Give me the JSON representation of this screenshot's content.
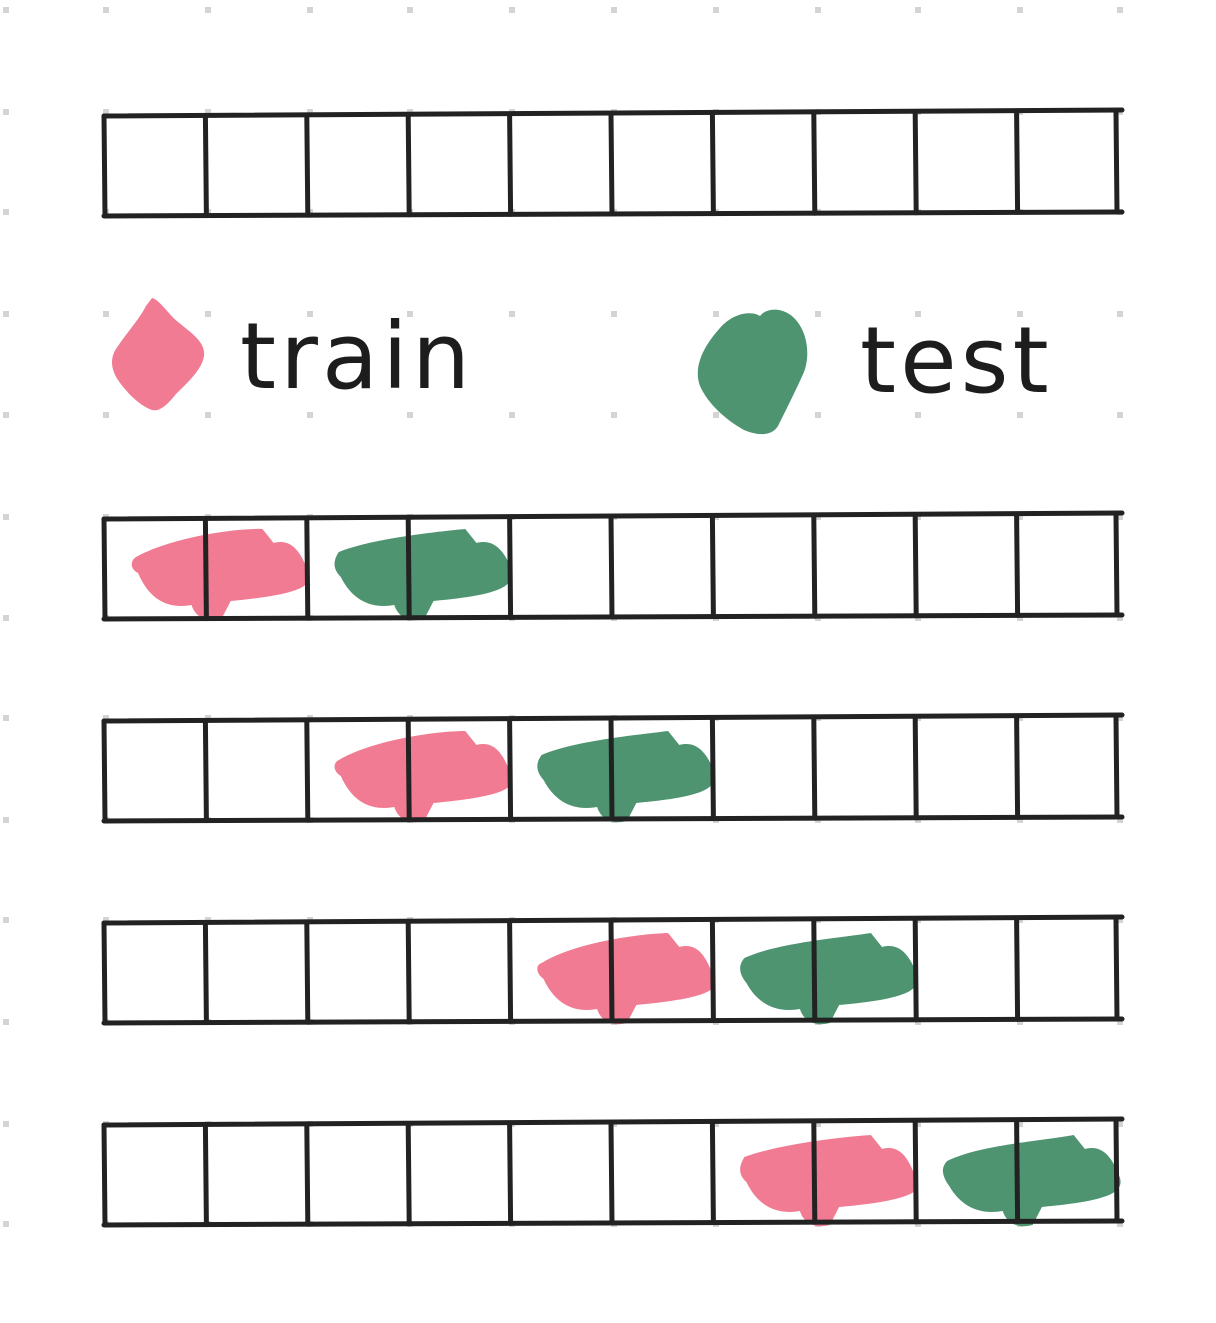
{
  "legend": {
    "train": {
      "label": "train",
      "color": "#f07b92",
      "icon": "pink-marker-diamond"
    },
    "test": {
      "label": "test",
      "color": "#4e9471",
      "icon": "green-marker-blob"
    }
  },
  "grid": {
    "cells_per_row": 10
  },
  "rows": [
    {
      "name": "empty-row",
      "train": [],
      "test": []
    },
    {
      "name": "split-1",
      "train": [
        1,
        2
      ],
      "test": [
        3,
        4
      ]
    },
    {
      "name": "split-2",
      "train": [
        3,
        4
      ],
      "test": [
        5,
        6
      ]
    },
    {
      "name": "split-3",
      "train": [
        5,
        6
      ],
      "test": [
        7,
        8
      ]
    },
    {
      "name": "split-4",
      "train": [
        7,
        8
      ],
      "test": [
        9,
        10
      ]
    }
  ]
}
